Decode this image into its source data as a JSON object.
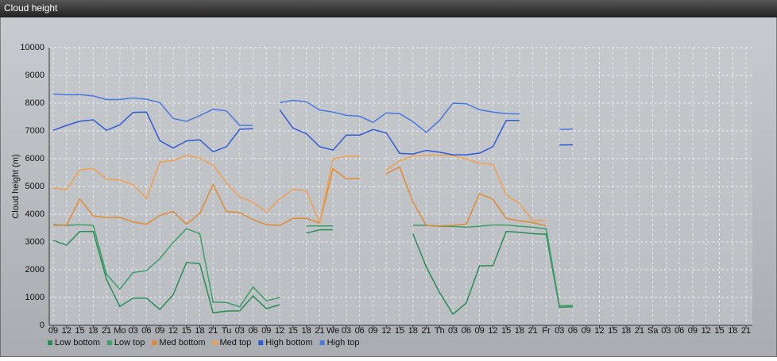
{
  "chart_data": {
    "type": "line",
    "title": "Cloud height",
    "y_label": "Cloud height (m)",
    "categories": [
      "09",
      "12",
      "15",
      "18",
      "21",
      "Mo",
      "03",
      "06",
      "09",
      "12",
      "15",
      "18",
      "21",
      "Tu",
      "03",
      "06",
      "09",
      "12",
      "15",
      "18",
      "21",
      "We",
      "03",
      "06",
      "09",
      "12",
      "15",
      "18",
      "21",
      "Th",
      "03",
      "06",
      "09",
      "12",
      "15",
      "18",
      "21",
      "Fr",
      "03",
      "06",
      "09",
      "12",
      "15",
      "18",
      "21",
      "Sa",
      "03",
      "06",
      "09",
      "12",
      "15",
      "18",
      "21"
    ],
    "ylim": [
      0,
      10000
    ],
    "yticks": [
      0,
      1000,
      2000,
      3000,
      4000,
      5000,
      6000,
      7000,
      8000,
      9000,
      10000
    ],
    "grid": true,
    "series": [
      {
        "name": "Low bottom",
        "color": "#2a8c55",
        "values": [
          3060,
          2890,
          3380,
          3380,
          1650,
          680,
          980,
          980,
          570,
          1100,
          2260,
          2220,
          450,
          510,
          520,
          1060,
          600,
          740,
          null,
          3320,
          3440,
          3440,
          null,
          null,
          null,
          null,
          null,
          3300,
          2100,
          1180,
          400,
          800,
          2140,
          2150,
          3380,
          3350,
          3300,
          3280,
          650,
          670,
          null,
          null,
          null,
          null,
          null,
          null,
          null,
          null,
          null,
          null,
          null,
          null,
          null
        ]
      },
      {
        "name": "Low top",
        "color": "#3aa065",
        "values": [
          3620,
          3600,
          3620,
          3600,
          1830,
          1300,
          1900,
          1970,
          2400,
          2980,
          3480,
          3300,
          830,
          820,
          670,
          1380,
          880,
          1000,
          null,
          3580,
          3580,
          3580,
          null,
          null,
          null,
          null,
          null,
          3600,
          3600,
          3570,
          3560,
          3530,
          3570,
          3610,
          3610,
          3570,
          3530,
          3470,
          700,
          720,
          null,
          null,
          null,
          null,
          null,
          null,
          null,
          null,
          null,
          null,
          null,
          null,
          null
        ]
      },
      {
        "name": "Med bottom",
        "color": "#e08a30",
        "values": [
          3600,
          3600,
          4550,
          3940,
          3880,
          3890,
          3720,
          3640,
          3960,
          4100,
          3640,
          4030,
          5070,
          4100,
          4060,
          3800,
          3620,
          3600,
          3850,
          3850,
          3680,
          5640,
          5270,
          5290,
          null,
          5460,
          5700,
          4440,
          3600,
          3580,
          3600,
          3640,
          4740,
          4540,
          3850,
          3760,
          3700,
          3580,
          null,
          null,
          null,
          null,
          null,
          null,
          null,
          null,
          null,
          null,
          null,
          null,
          null,
          null,
          null
        ]
      },
      {
        "name": "Med top",
        "color": "#f0a050",
        "values": [
          4950,
          4880,
          5590,
          5650,
          5260,
          5230,
          5060,
          4570,
          5880,
          5930,
          6120,
          6020,
          5770,
          5130,
          4620,
          4430,
          4070,
          4550,
          4890,
          4850,
          3700,
          5990,
          6090,
          6080,
          null,
          5600,
          5920,
          6100,
          6130,
          6130,
          6100,
          6000,
          5830,
          5800,
          4690,
          4390,
          3770,
          3780,
          null,
          null,
          null,
          null,
          null,
          null,
          null,
          null,
          null,
          null,
          null,
          null,
          null,
          null,
          null
        ]
      },
      {
        "name": "High bottom",
        "color": "#2f5bd4",
        "values": [
          7020,
          7200,
          7350,
          7400,
          7020,
          7220,
          7670,
          7680,
          6650,
          6380,
          6640,
          6680,
          6250,
          6430,
          7060,
          7080,
          null,
          7760,
          7100,
          6900,
          6430,
          6310,
          6850,
          6850,
          7050,
          6930,
          6190,
          6170,
          6300,
          6230,
          6140,
          6140,
          6200,
          6430,
          7380,
          7380,
          null,
          null,
          6490,
          6500,
          null,
          null,
          null,
          null,
          null,
          null,
          null,
          null,
          null,
          null,
          null,
          null,
          null
        ]
      },
      {
        "name": "High top",
        "color": "#4a78e0",
        "values": [
          8330,
          8300,
          8310,
          8260,
          8130,
          8130,
          8190,
          8140,
          8020,
          7450,
          7350,
          7550,
          7780,
          7720,
          7200,
          7200,
          null,
          8020,
          8100,
          8050,
          7750,
          7680,
          7560,
          7530,
          7310,
          7650,
          7620,
          7330,
          6950,
          7380,
          8000,
          7980,
          7760,
          7680,
          7620,
          7610,
          null,
          null,
          7050,
          7070,
          null,
          null,
          null,
          null,
          null,
          null,
          null,
          null,
          null,
          null,
          null,
          null,
          null
        ]
      }
    ]
  }
}
